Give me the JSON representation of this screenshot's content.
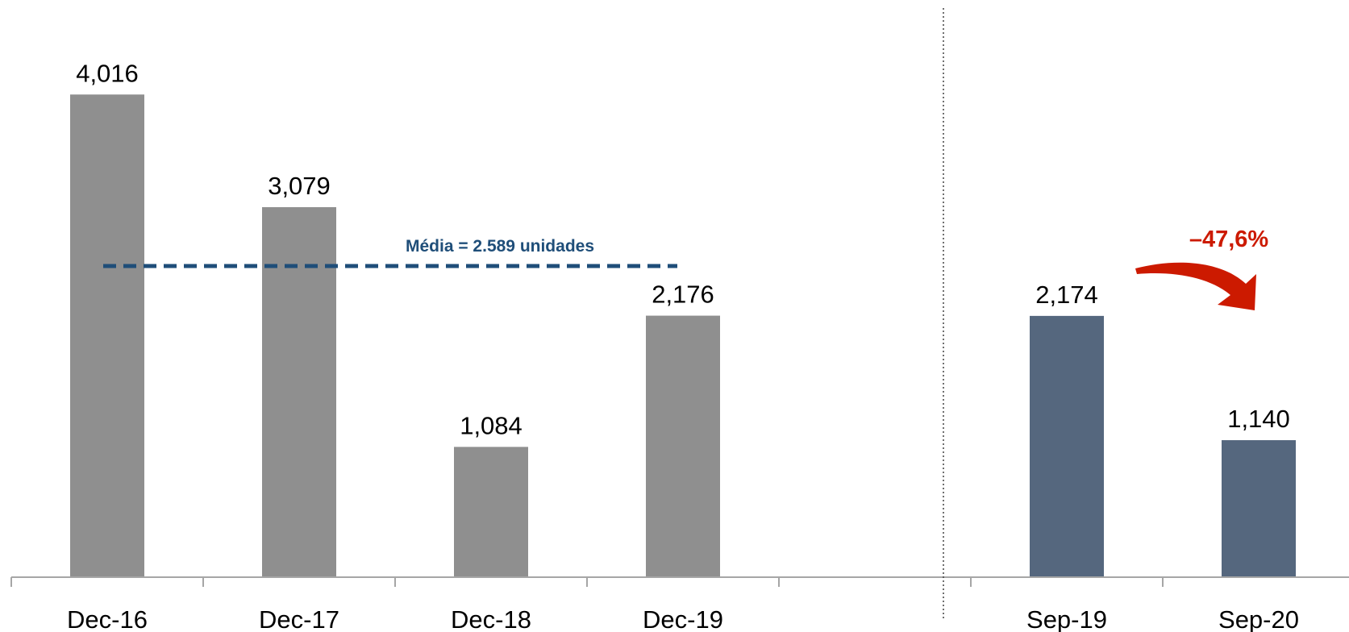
{
  "chart_data": {
    "type": "bar",
    "categories": [
      "Dec-16",
      "Dec-17",
      "Dec-18",
      "Dec-19",
      "",
      "Sep-19",
      "Sep-20"
    ],
    "values": [
      4016,
      3079,
      1084,
      2176,
      null,
      2174,
      1140
    ],
    "value_labels": [
      "4,016",
      "3,079",
      "1,084",
      "2,176",
      "",
      "2,174",
      "1,140"
    ],
    "bar_colors": [
      "#8f8f8f",
      "#8f8f8f",
      "#8f8f8f",
      "#8f8f8f",
      "",
      "#55677e",
      "#55677e"
    ],
    "ylim": [
      0,
      4400
    ],
    "grid": false,
    "average": {
      "value": 2589,
      "label": "Média = 2.589 unidades",
      "color": "#1f4e79"
    },
    "change": {
      "label": "–47,6%",
      "color": "#cc1a00"
    },
    "separator": "dotted"
  }
}
